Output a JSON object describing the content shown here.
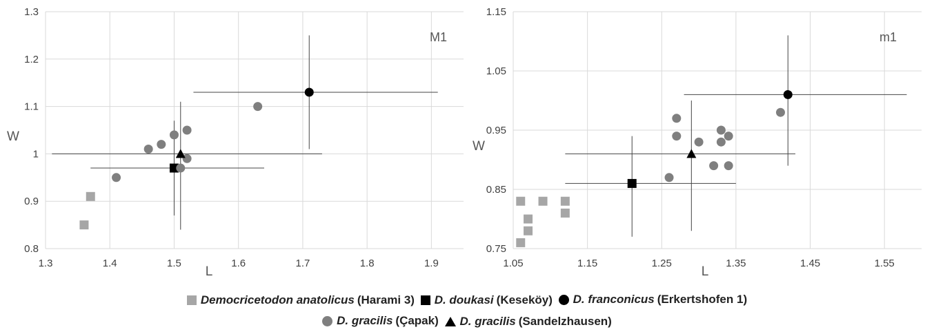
{
  "legend": {
    "row1": [
      {
        "species": "Democricetodon anatolicus",
        "locality": "(Harami 3)",
        "symbol": "square",
        "color": "#a6a6a6"
      },
      {
        "species": "D. doukasi",
        "locality": "(Keseköy)",
        "symbol": "square",
        "color": "#000000"
      },
      {
        "species": "D. franconicus",
        "locality": "(Erkertshofen 1)",
        "symbol": "circle",
        "color": "#000000"
      }
    ],
    "row2": [
      {
        "species": "D. gracilis",
        "locality": "(Çapak)",
        "symbol": "circle",
        "color": "#7f7f7f"
      },
      {
        "species": "D. gracilis",
        "locality": "(Sandelzhausen)",
        "symbol": "triangle",
        "color": "#000000"
      }
    ]
  },
  "chart_data": [
    {
      "type": "scatter",
      "panel_label": "M1",
      "xlabel": "L",
      "ylabel": "W",
      "xlim": [
        1.3,
        1.95
      ],
      "ylim": [
        0.8,
        1.3
      ],
      "xticks": [
        1.3,
        1.4,
        1.5,
        1.6,
        1.7,
        1.8,
        1.9
      ],
      "yticks": [
        0.8,
        0.9,
        1.0,
        1.1,
        1.2,
        1.3
      ],
      "xtick_labels": [
        "1.3",
        "1.4",
        "1.5",
        "1.6",
        "1.7",
        "1.8",
        "1.9"
      ],
      "ytick_labels": [
        "0.8",
        "0.9",
        "1",
        "1.1",
        "1.2",
        "1.3"
      ],
      "grid": true,
      "series": [
        {
          "name": "Democricetodon anatolicus (Harami 3)",
          "marker": "square",
          "color": "#a6a6a6",
          "points": [
            [
              1.36,
              0.85
            ],
            [
              1.37,
              0.91
            ]
          ]
        },
        {
          "name": "D. doukasi (Keseköy)",
          "marker": "square",
          "color": "#000000",
          "points": [
            [
              1.5,
              0.97
            ]
          ],
          "range": {
            "x": [
              1.37,
              1.64
            ],
            "y": [
              0.87,
              1.07
            ]
          }
        },
        {
          "name": "D. franconicus (Erkertshofen 1)",
          "marker": "circle",
          "color": "#000000",
          "points": [
            [
              1.71,
              1.13
            ]
          ],
          "range": {
            "x": [
              1.53,
              1.91
            ],
            "y": [
              1.01,
              1.25
            ]
          }
        },
        {
          "name": "D. gracilis (Çapak)",
          "marker": "circle",
          "color": "#7f7f7f",
          "points": [
            [
              1.41,
              0.95
            ],
            [
              1.46,
              1.01
            ],
            [
              1.48,
              1.02
            ],
            [
              1.5,
              1.04
            ],
            [
              1.52,
              1.05
            ],
            [
              1.52,
              0.99
            ],
            [
              1.51,
              0.97
            ],
            [
              1.63,
              1.1
            ]
          ]
        },
        {
          "name": "D. gracilis (Sandelzhausen)",
          "marker": "triangle",
          "color": "#000000",
          "points": [
            [
              1.51,
              1.0
            ]
          ],
          "range": {
            "x": [
              1.31,
              1.73
            ],
            "y": [
              0.84,
              1.11
            ]
          }
        }
      ]
    },
    {
      "type": "scatter",
      "panel_label": "m1",
      "xlabel": "L",
      "ylabel": "W",
      "xlim": [
        1.05,
        1.6
      ],
      "ylim": [
        0.75,
        1.15
      ],
      "xticks": [
        1.05,
        1.15,
        1.25,
        1.35,
        1.45,
        1.55
      ],
      "yticks": [
        0.75,
        0.85,
        0.95,
        1.05,
        1.15
      ],
      "xtick_labels": [
        "1.05",
        "1.15",
        "1.25",
        "1.35",
        "1.45",
        "1.55"
      ],
      "ytick_labels": [
        "0.75",
        "0.85",
        "0.95",
        "1.05",
        "1.15"
      ],
      "grid": true,
      "series": [
        {
          "name": "Democricetodon anatolicus (Harami 3)",
          "marker": "square",
          "color": "#a6a6a6",
          "points": [
            [
              1.06,
              0.83
            ],
            [
              1.06,
              0.76
            ],
            [
              1.07,
              0.8
            ],
            [
              1.07,
              0.78
            ],
            [
              1.09,
              0.83
            ],
            [
              1.12,
              0.83
            ],
            [
              1.12,
              0.81
            ]
          ]
        },
        {
          "name": "D. doukasi (Keseköy)",
          "marker": "square",
          "color": "#000000",
          "points": [
            [
              1.21,
              0.86
            ]
          ],
          "range": {
            "x": [
              1.12,
              1.35
            ],
            "y": [
              0.77,
              0.94
            ]
          }
        },
        {
          "name": "D. franconicus (Erkertshofen 1)",
          "marker": "circle",
          "color": "#000000",
          "points": [
            [
              1.42,
              1.01
            ]
          ],
          "range": {
            "x": [
              1.28,
              1.58
            ],
            "y": [
              0.89,
              1.11
            ]
          }
        },
        {
          "name": "D. gracilis (Çapak)",
          "marker": "circle",
          "color": "#7f7f7f",
          "points": [
            [
              1.26,
              0.87
            ],
            [
              1.27,
              0.97
            ],
            [
              1.27,
              0.94
            ],
            [
              1.3,
              0.93
            ],
            [
              1.32,
              0.89
            ],
            [
              1.33,
              0.95
            ],
            [
              1.33,
              0.93
            ],
            [
              1.34,
              0.94
            ],
            [
              1.34,
              0.89
            ],
            [
              1.41,
              0.98
            ]
          ]
        },
        {
          "name": "D. gracilis (Sandelzhausen)",
          "marker": "triangle",
          "color": "#000000",
          "points": [
            [
              1.29,
              0.91
            ]
          ],
          "range": {
            "x": [
              1.12,
              1.43
            ],
            "y": [
              0.78,
              1.0
            ]
          }
        }
      ]
    }
  ]
}
